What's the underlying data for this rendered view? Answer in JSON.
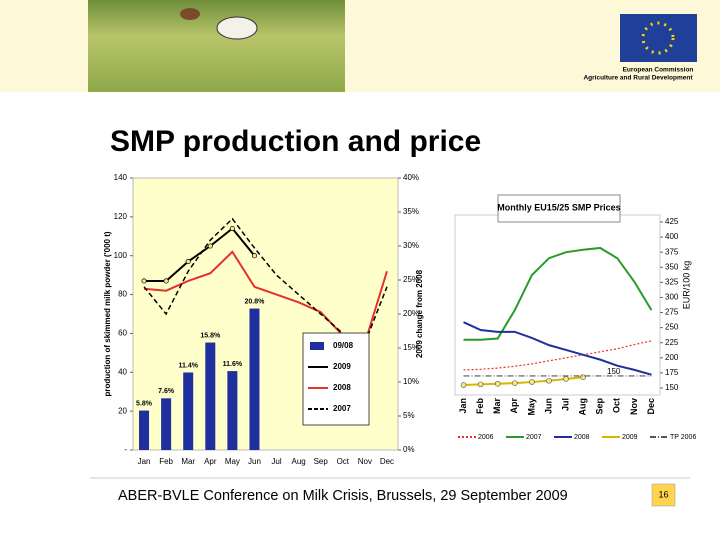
{
  "slide": {
    "org": "European Commission",
    "dg": "Agriculture and Rural Development",
    "title": "SMP production and price",
    "footer": "ABER-BVLE Conference on Milk Crisis, Brussels, 29 September 2009",
    "page": "16"
  },
  "chart_data": [
    {
      "type": "combo",
      "ylabel": "production of skimmed milk powder ('000 t)",
      "y2label": "2009 change from 2008",
      "categories": [
        "Jan",
        "Feb",
        "Mar",
        "Apr",
        "May",
        "Jun",
        "Jul",
        "Aug",
        "Sep",
        "Oct",
        "Nov",
        "Dec"
      ],
      "ylim": [
        0,
        140
      ],
      "yticks": [
        {
          "value": 0,
          "label": "-"
        },
        20,
        40,
        60,
        80,
        100,
        120,
        140
      ],
      "y2lim": [
        0,
        40
      ],
      "y2ticks": [
        {
          "value": 0,
          "label": "0%"
        },
        {
          "value": 5,
          "label": "5%"
        },
        {
          "value": 10,
          "label": "10%"
        },
        {
          "value": 15,
          "label": "15%"
        },
        {
          "value": 20,
          "label": "20%"
        },
        {
          "value": 25,
          "label": "25%"
        },
        {
          "value": 30,
          "label": "30%"
        },
        {
          "value": 35,
          "label": "35%"
        },
        {
          "value": 40,
          "label": "40%"
        }
      ],
      "series": [
        {
          "name": "09/08",
          "kind": "bar",
          "axis": "y2",
          "color": "#1f2f9e",
          "values": [
            5.8,
            7.6,
            11.4,
            15.8,
            11.6,
            20.8,
            null,
            null,
            null,
            null,
            null,
            null
          ],
          "value_labels": [
            "5.8%",
            "7.6%",
            "11.4%",
            "15.8%",
            "11.6%",
            "20.8%",
            null,
            null,
            null,
            null,
            null,
            null
          ]
        },
        {
          "name": "2009",
          "kind": "line",
          "color": "#000000",
          "marker": true,
          "values": [
            87,
            87,
            97,
            105,
            114,
            100,
            null,
            null,
            null,
            null,
            null,
            null
          ]
        },
        {
          "name": "2008",
          "kind": "line",
          "color": "#e8302a",
          "values": [
            83,
            82,
            87,
            91,
            102,
            84,
            80,
            76,
            71,
            59,
            55,
            92
          ]
        },
        {
          "name": "2007",
          "kind": "line",
          "color": "#000000",
          "dash": true,
          "values": [
            84,
            70,
            92,
            108,
            119,
            104,
            90,
            80,
            70,
            60,
            55,
            84
          ]
        }
      ]
    },
    {
      "type": "line",
      "title": "Monthly EU15/25 SMP Prices",
      "ylabel": "EUR/100 kg",
      "categories": [
        "Jan",
        "Feb",
        "Mar",
        "Apr",
        "May",
        "Jun",
        "Jul",
        "Aug",
        "Sep",
        "Oct",
        "Nov",
        "Dec"
      ],
      "ylim": [
        150,
        425
      ],
      "yticks": [
        150,
        175,
        200,
        225,
        250,
        275,
        300,
        325,
        350,
        375,
        400,
        425
      ],
      "annotation": "150",
      "series": [
        {
          "name": "2006",
          "color": "#e8302a",
          "dash": "2,2",
          "values": [
            180,
            181,
            183,
            186,
            190,
            195,
            200,
            205,
            210,
            215,
            222,
            228
          ]
        },
        {
          "name": "2007",
          "color": "#2a9a2a",
          "values": [
            230,
            230,
            232,
            279,
            337,
            365,
            375,
            379,
            382,
            365,
            326,
            279
          ]
        },
        {
          "name": "2008",
          "color": "#1f2f9e",
          "values": [
            259,
            246,
            243,
            243,
            233,
            221,
            213,
            205,
            197,
            187,
            180,
            172
          ]
        },
        {
          "name": "2009",
          "color": "#d4b800",
          "marker": true,
          "values": [
            155,
            156,
            157,
            158,
            160,
            162,
            165,
            168,
            null,
            null,
            null,
            null
          ]
        },
        {
          "name": "TP 2006",
          "color": "#555555",
          "dash": "6,2,1,2",
          "values": [
            170,
            170,
            170,
            170,
            170,
            170,
            170,
            170,
            170,
            170,
            170,
            170
          ]
        }
      ]
    }
  ]
}
